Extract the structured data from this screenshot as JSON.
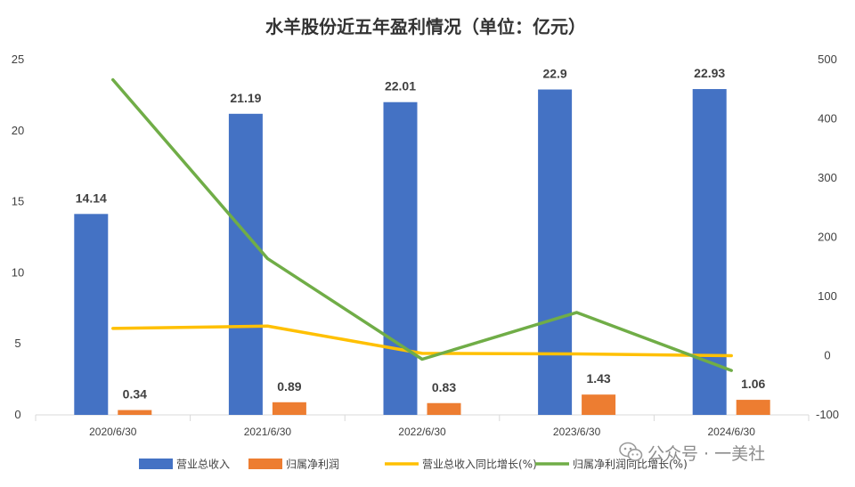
{
  "chart_data": {
    "type": "bar",
    "title": "水羊股份近五年盈利情况（单位：亿元）",
    "categories": [
      "2020/6/30",
      "2021/6/30",
      "2022/6/30",
      "2023/6/30",
      "2024/6/30"
    ],
    "series": [
      {
        "name": "营业总收入",
        "kind": "bar",
        "axis": "left",
        "color": "#4472C4",
        "values": [
          14.14,
          21.19,
          22.01,
          22.9,
          22.93
        ]
      },
      {
        "name": "归属净利润",
        "kind": "bar",
        "axis": "left",
        "color": "#ED7D31",
        "values": [
          0.34,
          0.89,
          0.83,
          1.43,
          1.06
        ]
      },
      {
        "name": "营业总收入同比增长(%)",
        "kind": "line",
        "axis": "right",
        "color": "#FFC000",
        "values": [
          46,
          50,
          4,
          3,
          0
        ]
      },
      {
        "name": "归属净利润同比增长(%)",
        "kind": "line",
        "axis": "right",
        "color": "#70AD47",
        "values": [
          466,
          164,
          -6,
          73,
          -25
        ]
      }
    ],
    "y_left": {
      "min": 0,
      "max": 25,
      "step": 5,
      "ticks": [
        "0",
        "5",
        "10",
        "15",
        "20",
        "25"
      ]
    },
    "y_right": {
      "min": -100,
      "max": 500,
      "step": 100,
      "ticks": [
        "-100",
        "0",
        "100",
        "200",
        "300",
        "400",
        "500"
      ]
    },
    "data_labels": {
      "营业总收入": [
        "14.14",
        "21.19",
        "22.01",
        "22.9",
        "22.93"
      ],
      "归属净利润": [
        "0.34",
        "0.89",
        "0.83",
        "1.43",
        "1.06"
      ]
    },
    "grid": false,
    "legend": "bottom"
  },
  "watermark": {
    "text": "公众号 · 一美社",
    "icon": "wechat-icon"
  }
}
